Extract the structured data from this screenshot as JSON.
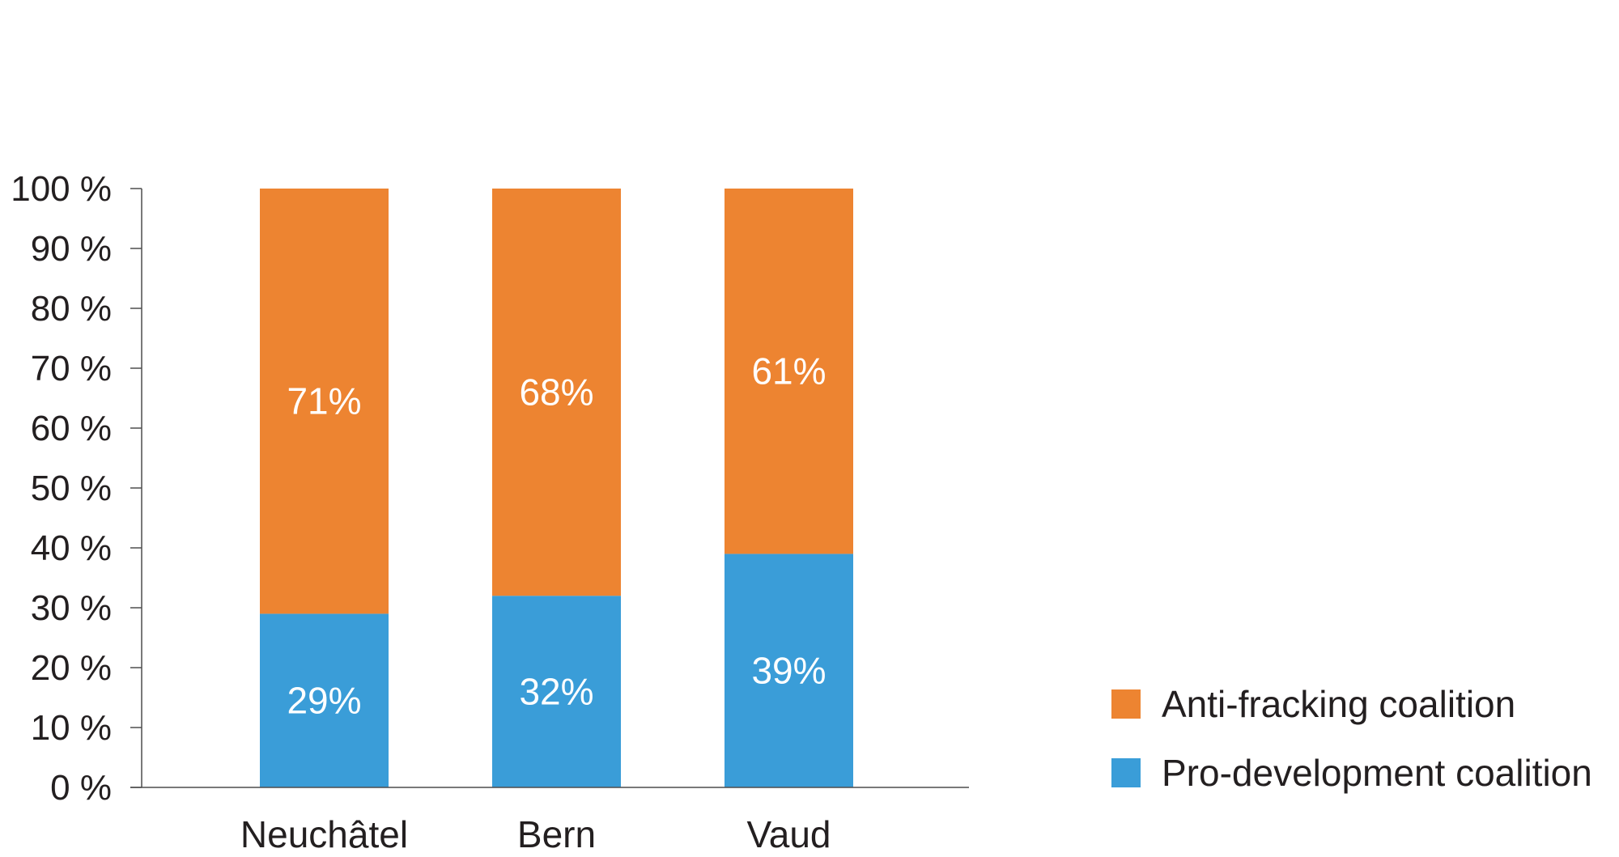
{
  "chart_data": {
    "type": "bar",
    "stacked": true,
    "categories": [
      "Neuchâtel",
      "Bern",
      "Vaud"
    ],
    "series": [
      {
        "name": "Pro-development coalition",
        "values": [
          29,
          32,
          39
        ],
        "labels": [
          "29%",
          "32%",
          "39%"
        ],
        "color": "#3a9dd8"
      },
      {
        "name": "Anti-fracking coalition",
        "values": [
          71,
          68,
          61
        ],
        "labels": [
          "71%",
          "68%",
          "61%"
        ],
        "color": "#ed8431"
      }
    ],
    "yticks": [
      "0 %",
      "10 %",
      "20 %",
      "30 %",
      "40 %",
      "50 %",
      "60 %",
      "70 %",
      "80 %",
      "90 %",
      "100 %"
    ],
    "ylim": [
      0,
      100
    ],
    "title": "",
    "xlabel": "",
    "ylabel": "",
    "legend": {
      "placement": "bottom-right",
      "order": [
        "Anti-fracking coalition",
        "Pro-development coalition"
      ]
    }
  }
}
